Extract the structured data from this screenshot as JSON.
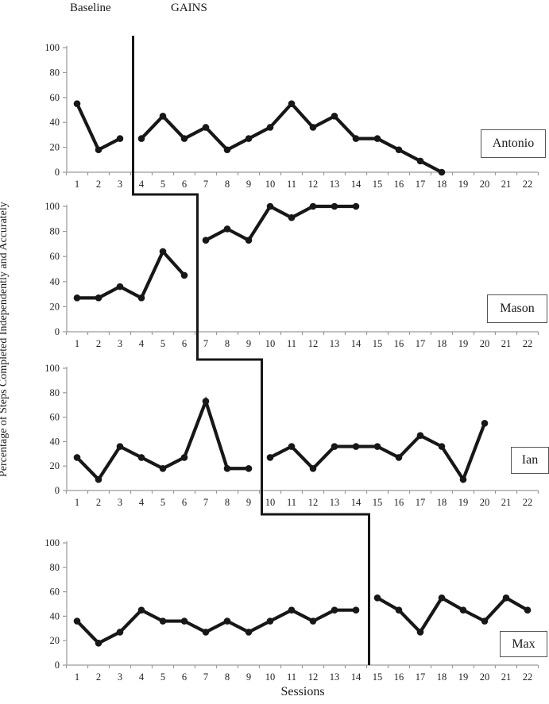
{
  "phase_labels": {
    "baseline": "Baseline",
    "gains": "GAINS"
  },
  "axes": {
    "ylabel": "Percentage of Steps Completed Independently and Accurately",
    "xlabel": "Sessions",
    "y_ticks": [
      0,
      20,
      40,
      60,
      80,
      100
    ],
    "x_ticks": [
      1,
      2,
      3,
      4,
      5,
      6,
      7,
      8,
      9,
      10,
      11,
      12,
      13,
      14,
      15,
      16,
      17,
      18,
      19,
      20,
      21,
      22
    ],
    "ylim": [
      0,
      100
    ],
    "xlim": [
      1,
      22
    ]
  },
  "colors": {
    "series": "#171717",
    "phase_line": "#171717",
    "axis": "#9a9a9a",
    "tick_text": "#1f1f1f"
  },
  "chart_data": [
    {
      "type": "line",
      "name": "Antonio",
      "phase_change_after_session": 3,
      "sessions": [
        1,
        2,
        3,
        4,
        5,
        6,
        7,
        8,
        9,
        10,
        11,
        12,
        13,
        14,
        15,
        16,
        17,
        18
      ],
      "values": [
        55,
        18,
        27,
        27,
        45,
        27,
        36,
        18,
        27,
        36,
        55,
        36,
        45,
        27,
        27,
        18,
        9,
        0
      ]
    },
    {
      "type": "line",
      "name": "Mason",
      "phase_change_after_session": 6,
      "sessions": [
        1,
        2,
        3,
        4,
        5,
        6,
        7,
        8,
        9,
        10,
        11,
        12,
        13,
        14
      ],
      "values": [
        27,
        27,
        36,
        27,
        64,
        45,
        73,
        82,
        73,
        100,
        91,
        100,
        100,
        100
      ]
    },
    {
      "type": "line",
      "name": "Ian",
      "phase_change_after_session": 9,
      "sessions": [
        1,
        2,
        3,
        4,
        5,
        6,
        7,
        8,
        9,
        10,
        11,
        12,
        13,
        14,
        15,
        16,
        17,
        18,
        19,
        20
      ],
      "values": [
        27,
        9,
        36,
        27,
        18,
        27,
        73,
        18,
        18,
        27,
        36,
        18,
        36,
        36,
        36,
        27,
        45,
        36,
        9,
        55
      ]
    },
    {
      "type": "line",
      "name": "Max",
      "phase_change_after_session": 14,
      "sessions": [
        1,
        2,
        3,
        4,
        5,
        6,
        7,
        8,
        9,
        10,
        11,
        12,
        13,
        14,
        15,
        16,
        17,
        18,
        19,
        20,
        21,
        22
      ],
      "values": [
        36,
        18,
        27,
        45,
        36,
        36,
        27,
        36,
        27,
        36,
        45,
        36,
        45,
        45,
        55,
        45,
        27,
        55,
        45,
        36,
        55,
        45
      ]
    }
  ]
}
